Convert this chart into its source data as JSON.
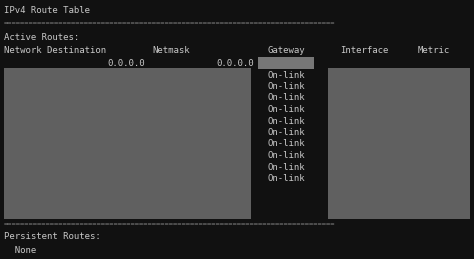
{
  "title": "IPv4 Route Table",
  "bg_color": "#111111",
  "text_color": "#c8c8c8",
  "separator_color": "#777777",
  "gray_box_color": "#606060",
  "gateway_highlight_color": "#777777",
  "active_routes_label": "Active Routes:",
  "persistent_routes_label": "Persistent Routes:",
  "none_label": "  None",
  "on_link_count": 10,
  "on_link_label": "On-link",
  "font_size": 6.5,
  "sep_font_size": 5.0,
  "fig_width": 4.74,
  "fig_height": 2.59,
  "dpi": 100
}
